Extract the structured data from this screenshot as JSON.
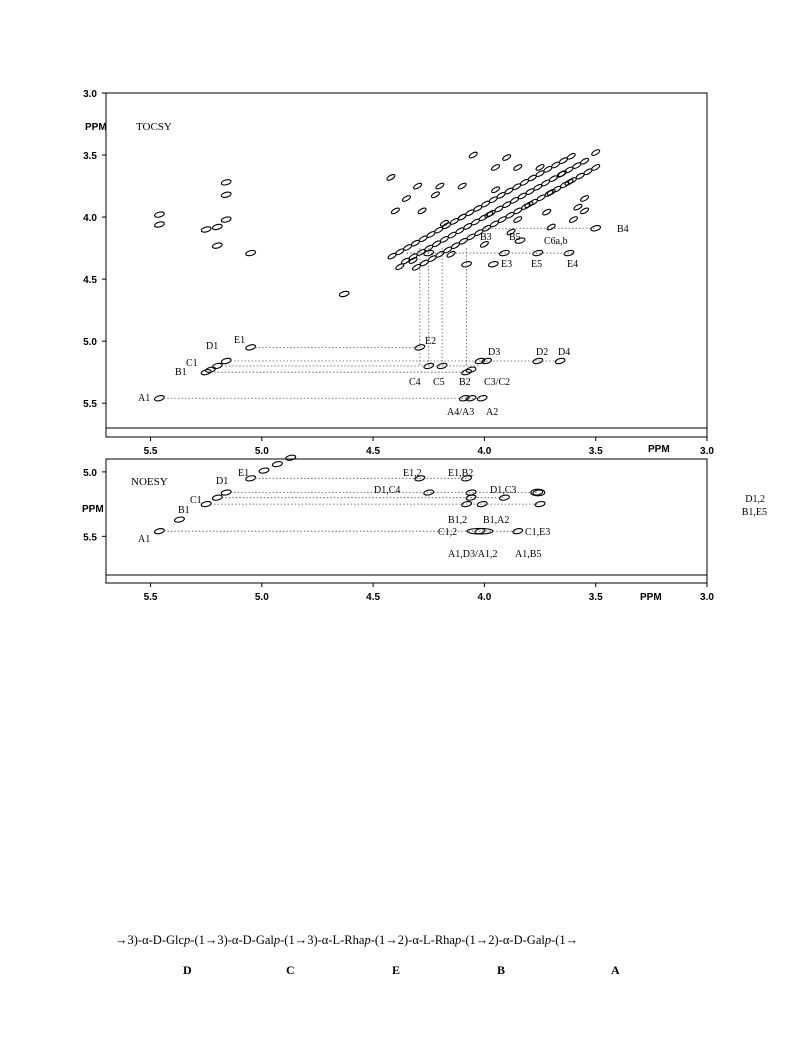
{
  "chart_data": [
    {
      "type": "scatter",
      "title": "TOCSY",
      "xlabel": "PPM",
      "ylabel": "PPM",
      "xlim": [
        5.7,
        3.0
      ],
      "ylim": [
        3.0,
        5.7
      ],
      "x_ticks": [
        "5.5",
        "5.0",
        "4.5",
        "4.0",
        "3.5",
        "3.0"
      ],
      "y_ticks": [
        "3.0",
        "3.5",
        "4.0",
        "4.5",
        "5.0",
        "5.5"
      ],
      "grid": false,
      "labels": [
        {
          "text": "A1",
          "x": 5.46,
          "y": 5.46
        },
        {
          "text": "B1",
          "x": 5.25,
          "y": 5.25
        },
        {
          "text": "C1",
          "x": 5.2,
          "y": 5.2
        },
        {
          "text": "D1",
          "x": 5.16,
          "y": 5.16
        },
        {
          "text": "E1",
          "x": 5.05,
          "y": 5.05
        },
        {
          "text": "E2",
          "x": 4.29,
          "y": 5.05
        },
        {
          "text": "D3",
          "x": 4.01,
          "y": 5.16
        },
        {
          "text": "D2",
          "x": 3.76,
          "y": 5.16
        },
        {
          "text": "D4",
          "x": 3.66,
          "y": 5.16
        },
        {
          "text": "C4",
          "x": 4.25,
          "y": 5.2
        },
        {
          "text": "C5",
          "x": 4.19,
          "y": 5.2
        },
        {
          "text": "B2",
          "x": 4.08,
          "y": 5.25
        },
        {
          "text": "C3/C2",
          "x": 4.02,
          "y": 5.2
        },
        {
          "text": "A4/A3",
          "x": 4.09,
          "y": 5.46
        },
        {
          "text": "A2",
          "x": 4.01,
          "y": 5.46
        },
        {
          "text": "B4",
          "x": 3.5,
          "y": 4.09
        },
        {
          "text": "B3",
          "x": 4.0,
          "y": 4.15
        },
        {
          "text": "B5",
          "x": 3.94,
          "y": 4.15
        },
        {
          "text": "C6a,b",
          "x": 3.84,
          "y": 4.19
        },
        {
          "text": "E3",
          "x": 3.91,
          "y": 4.29
        },
        {
          "text": "E5",
          "x": 3.76,
          "y": 4.29
        },
        {
          "text": "E4",
          "x": 3.62,
          "y": 4.29
        }
      ]
    },
    {
      "type": "scatter",
      "title": "NOESY",
      "xlabel": "PPM",
      "ylabel": "PPM",
      "xlim": [
        5.7,
        3.0
      ],
      "ylim": [
        4.9,
        5.8
      ],
      "x_ticks": [
        "5.5",
        "5.0",
        "4.5",
        "4.0",
        "3.5",
        "3.0"
      ],
      "y_ticks": [
        "5.0",
        "5.5"
      ],
      "grid": false,
      "labels": [
        {
          "text": "A1",
          "x": 5.46,
          "y": 5.46
        },
        {
          "text": "B1",
          "x": 5.25,
          "y": 5.25
        },
        {
          "text": "C1",
          "x": 5.2,
          "y": 5.2
        },
        {
          "text": "D1",
          "x": 5.16,
          "y": 5.16
        },
        {
          "text": "E1",
          "x": 5.05,
          "y": 5.05
        },
        {
          "text": "E1,2",
          "x": 4.29,
          "y": 5.05
        },
        {
          "text": "E1,B2",
          "x": 4.08,
          "y": 5.05
        },
        {
          "text": "D1,C4",
          "x": 4.25,
          "y": 5.16
        },
        {
          "text": "D1,C3",
          "x": 4.06,
          "y": 5.16
        },
        {
          "text": "D1,2",
          "x": 3.76,
          "y": 5.16
        },
        {
          "text": "B1,E5",
          "x": 3.75,
          "y": 5.25
        },
        {
          "text": "B1,2",
          "x": 4.08,
          "y": 5.25
        },
        {
          "text": "B1,A2",
          "x": 4.01,
          "y": 5.25
        },
        {
          "text": "C1,2",
          "x": 4.06,
          "y": 5.2
        },
        {
          "text": "C1,E3",
          "x": 3.91,
          "y": 5.2
        },
        {
          "text": "A1,D3/A1,2",
          "x": 4.02,
          "y": 5.46
        },
        {
          "text": "A1,B5",
          "x": 3.85,
          "y": 5.46
        }
      ]
    }
  ],
  "sequence": {
    "p1": "→3)-α-D-Glc",
    "p2": "-(1→3)-α-D-Gal",
    "p3": "-(1→3)-α-L-Rha",
    "p4": "-(1→2)-α-L-Rha",
    "p5": "-(1→2)-α-D-Gal",
    "p6": "-(1→",
    "italic": "p",
    "residues": [
      "D",
      "C",
      "E",
      "B",
      "A"
    ]
  }
}
